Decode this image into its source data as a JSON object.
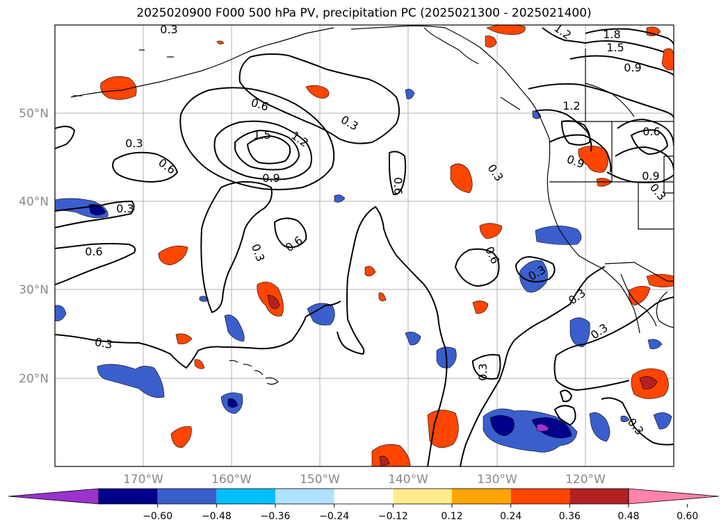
{
  "title": "2025020900 F000 500 hPa PV, precipitation PC (2025021300 - 2025021400)",
  "map": {
    "lon_ticks": [
      "170°W",
      "160°W",
      "150°W",
      "140°W",
      "130°W",
      "120°W"
    ],
    "lat_ticks": [
      "50°N",
      "40°N",
      "30°N",
      "20°N"
    ],
    "contour_labels": [
      "0.3",
      "0.6",
      "0.3",
      "0.6",
      "1.5",
      "1.2",
      "0.9",
      "0.3",
      "0.6",
      "0.3",
      "0.3",
      "0.6",
      "0.3",
      "0.6",
      "0.3",
      "1.2",
      "1.8",
      "1.5",
      "0.9",
      "1.2",
      "0.6",
      "0.9",
      "0.9",
      "0.3",
      "0.3",
      "0.3",
      "0.3",
      "0.6",
      "0.3",
      "0.3"
    ]
  },
  "colorbar": {
    "ticks": [
      "−0.60",
      "−0.48",
      "−0.36",
      "−0.24",
      "−0.12",
      "0.12",
      "0.24",
      "0.36",
      "0.48",
      "0.60"
    ],
    "colors": [
      "#9a32cd",
      "#00008b",
      "#3a5fcd",
      "#00bfff",
      "#b0e2ff",
      "#ffffff",
      "#ffec8b",
      "#ffa500",
      "#ff4500",
      "#b22222",
      "#ff83aa"
    ]
  }
}
